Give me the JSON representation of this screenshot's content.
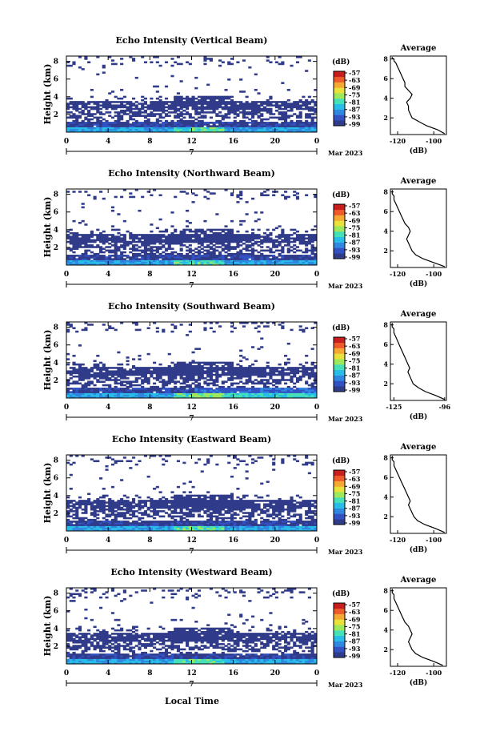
{
  "figure": {
    "xlabel": "Local Time",
    "date_label": "Mar 2023",
    "day_label": "7",
    "unit_label": "(dB)",
    "colormap": [
      "#303b8a",
      "#3252c4",
      "#2f87e0",
      "#28bde8",
      "#45e0b8",
      "#9ee85c",
      "#e8e23a",
      "#f5a832",
      "#ef5a2a",
      "#c81e1e"
    ]
  },
  "chart_data": [
    {
      "type": "heatmap",
      "title": "Echo Intensity (Vertical Beam)",
      "ylabel": "Height (km)",
      "x_ticks": [
        "0",
        "4",
        "8",
        "12",
        "16",
        "20",
        "0"
      ],
      "y_ticks": [
        "2",
        "4",
        "6",
        "8"
      ],
      "colorbar_ticks": [
        "-57",
        "-63",
        "-69",
        "-75",
        "-81",
        "-87",
        "-93",
        "-99"
      ],
      "profile": {
        "type": "line",
        "title": "Average",
        "xlabel": "(dB)",
        "x_ticks": [
          "-120",
          "-100"
        ],
        "xlim": [
          -124,
          -93
        ],
        "y_ticks": [
          "2",
          "4",
          "6",
          "8"
        ],
        "ylim": [
          0.3,
          8.3
        ],
        "x": [
          -94,
          -98,
          -104,
          -108,
          -112,
          -113,
          -114,
          -114,
          -115,
          -113,
          -112,
          -114,
          -116,
          -116,
          -117,
          -118,
          -119,
          -120,
          -121,
          -122,
          -122,
          -123,
          -123
        ],
        "y": [
          0.4,
          0.8,
          1.2,
          1.6,
          2.0,
          2.4,
          2.8,
          3.2,
          3.6,
          4.0,
          4.4,
          4.8,
          5.2,
          5.6,
          6.0,
          6.4,
          6.8,
          7.2,
          7.6,
          7.8,
          8.0,
          8.1,
          8.2
        ]
      }
    },
    {
      "type": "heatmap",
      "title": "Echo Intensity (Northward Beam)",
      "ylabel": "Height (km)",
      "x_ticks": [
        "0",
        "4",
        "8",
        "12",
        "16",
        "20",
        "0"
      ],
      "y_ticks": [
        "2",
        "4",
        "6",
        "8"
      ],
      "colorbar_ticks": [
        "-57",
        "-63",
        "-69",
        "-75",
        "-81",
        "-87",
        "-93",
        "-99"
      ],
      "profile": {
        "type": "line",
        "title": "Average",
        "xlabel": "(dB)",
        "x_ticks": [
          "-120",
          "-100"
        ],
        "xlim": [
          -124,
          -93
        ],
        "y_ticks": [
          "2",
          "4",
          "6",
          "8"
        ],
        "ylim": [
          0.3,
          8.3
        ],
        "x": [
          -94,
          -100,
          -106,
          -110,
          -112,
          -113,
          -114,
          -115,
          -114,
          -113,
          -114,
          -116,
          -117,
          -118,
          -119,
          -120,
          -121,
          -122,
          -122,
          -123,
          -123,
          -123,
          -123
        ],
        "y": [
          0.4,
          0.8,
          1.2,
          1.6,
          2.0,
          2.4,
          2.8,
          3.2,
          3.6,
          4.0,
          4.4,
          4.8,
          5.2,
          5.6,
          6.0,
          6.4,
          6.8,
          7.2,
          7.6,
          7.8,
          8.0,
          8.1,
          8.2
        ]
      }
    },
    {
      "type": "heatmap",
      "title": "Echo Intensity (Southward Beam)",
      "ylabel": "Height (km)",
      "x_ticks": [
        "0",
        "4",
        "8",
        "12",
        "16",
        "20",
        "0"
      ],
      "y_ticks": [
        "2",
        "4",
        "6",
        "8"
      ],
      "colorbar_ticks": [
        "-57",
        "-63",
        "-69",
        "-75",
        "-81",
        "-87",
        "-93",
        "-99"
      ],
      "profile": {
        "type": "line",
        "title": "Average",
        "xlabel": "(dB)",
        "x_ticks": [
          "-125",
          "-96"
        ],
        "xlim": [
          -127,
          -95
        ],
        "y_ticks": [
          "2",
          "4",
          "6",
          "8"
        ],
        "ylim": [
          0.3,
          8.3
        ],
        "x": [
          -96,
          -101,
          -107,
          -111,
          -114,
          -115,
          -116,
          -117,
          -116,
          -117,
          -118,
          -119,
          -120,
          -121,
          -122,
          -123,
          -124,
          -125,
          -125,
          -126,
          -126,
          -126,
          -126
        ],
        "y": [
          0.4,
          0.8,
          1.2,
          1.6,
          2.0,
          2.4,
          2.8,
          3.2,
          3.6,
          4.0,
          4.4,
          4.8,
          5.2,
          5.6,
          6.0,
          6.4,
          6.8,
          7.2,
          7.6,
          7.8,
          8.0,
          8.1,
          8.2
        ]
      }
    },
    {
      "type": "heatmap",
      "title": "Echo Intensity (Eastward Beam)",
      "ylabel": "Height (km)",
      "x_ticks": [
        "0",
        "4",
        "8",
        "12",
        "16",
        "20",
        "0"
      ],
      "y_ticks": [
        "2",
        "4",
        "6",
        "8"
      ],
      "colorbar_ticks": [
        "-57",
        "-63",
        "-69",
        "-75",
        "-81",
        "-87",
        "-93",
        "-99"
      ],
      "profile": {
        "type": "line",
        "title": "Average",
        "xlabel": "(dB)",
        "x_ticks": [
          "-120",
          "-100"
        ],
        "xlim": [
          -124,
          -93
        ],
        "y_ticks": [
          "2",
          "4",
          "6",
          "8"
        ],
        "ylim": [
          0.3,
          8.3
        ],
        "x": [
          -94,
          -99,
          -105,
          -109,
          -111,
          -112,
          -113,
          -114,
          -113,
          -114,
          -115,
          -116,
          -117,
          -118,
          -119,
          -120,
          -121,
          -122,
          -122,
          -123,
          -123,
          -123,
          -123
        ],
        "y": [
          0.4,
          0.8,
          1.2,
          1.6,
          2.0,
          2.4,
          2.8,
          3.2,
          3.6,
          4.0,
          4.4,
          4.8,
          5.2,
          5.6,
          6.0,
          6.4,
          6.8,
          7.2,
          7.6,
          7.8,
          8.0,
          8.1,
          8.2
        ]
      }
    },
    {
      "type": "heatmap",
      "title": "Echo Intensity (Westward Beam)",
      "ylabel": "Height (km)",
      "x_ticks": [
        "0",
        "4",
        "8",
        "12",
        "16",
        "20",
        "0"
      ],
      "y_ticks": [
        "2",
        "4",
        "6",
        "8"
      ],
      "colorbar_ticks": [
        "-57",
        "-63",
        "-69",
        "-75",
        "-81",
        "-87",
        "-93",
        "-99"
      ],
      "profile": {
        "type": "line",
        "title": "Average",
        "xlabel": "(dB)",
        "x_ticks": [
          "-120",
          "-100"
        ],
        "xlim": [
          -124,
          -93
        ],
        "y_ticks": [
          "2",
          "4",
          "6",
          "8"
        ],
        "ylim": [
          0.3,
          8.3
        ],
        "x": [
          -95,
          -100,
          -106,
          -110,
          -112,
          -113,
          -114,
          -113,
          -112,
          -113,
          -114,
          -116,
          -117,
          -118,
          -119,
          -120,
          -121,
          -122,
          -122,
          -123,
          -123,
          -123,
          -123
        ],
        "y": [
          0.4,
          0.8,
          1.2,
          1.6,
          2.0,
          2.4,
          2.8,
          3.2,
          3.6,
          4.0,
          4.4,
          4.8,
          5.2,
          5.6,
          6.0,
          6.4,
          6.8,
          7.2,
          7.6,
          7.8,
          8.0,
          8.1,
          8.2
        ]
      }
    }
  ]
}
